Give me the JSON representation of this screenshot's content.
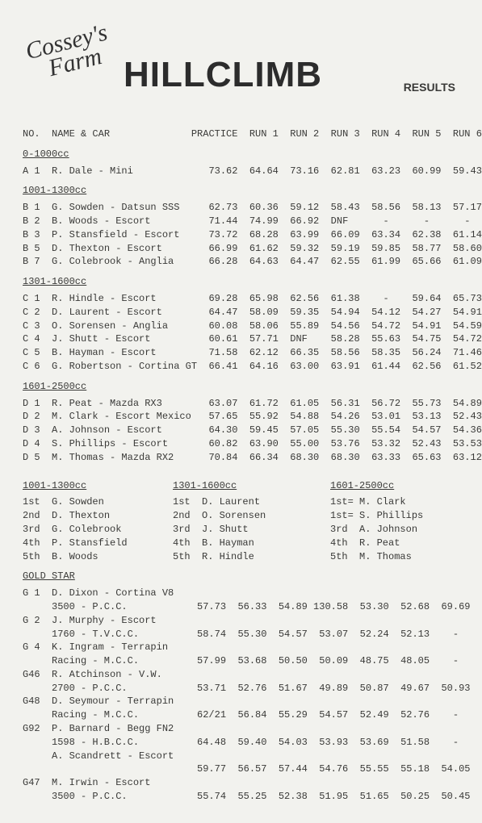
{
  "header": {
    "cursive_line1": "Cossey's",
    "cursive_line2": "Farm",
    "title": "HILLCLIMB",
    "results": "RESULTS"
  },
  "columns": "NO.  NAME & CAR              PRACTICE  RUN 1  RUN 2  RUN 3  RUN 4  RUN 5  RUN 6",
  "classes": [
    {
      "label": "0-1000cc",
      "rows": [
        "A 1  R. Dale - Mini             73.62  64.64  73.16  62.81  63.23  60.99  59.43"
      ]
    },
    {
      "label": "1001-1300cc",
      "rows": [
        "B 1  G. Sowden - Datsun SSS     62.73  60.36  59.12  58.43  58.56  58.13  57.17",
        "B 2  B. Woods - Escort          71.44  74.99  66.92  DNF      -      -      -",
        "B 3  P. Stansfield - Escort     73.72  68.28  63.99  66.09  63.34  62.38  61.14",
        "B 5  D. Thexton - Escort        66.99  61.62  59.32  59.19  59.85  58.77  58.60",
        "B 7  G. Colebrook - Anglia      66.28  64.63  64.47  62.55  61.99  65.66  61.09"
      ]
    },
    {
      "label": "1301-1600cc",
      "rows": [
        "C 1  R. Hindle - Escort         69.28  65.98  62.56  61.38    -    59.64  65.73",
        "C 2  D. Laurent - Escort        64.47  58.09  59.35  54.94  54.12  54.27  54.91",
        "C 3  O. Sorensen - Anglia       60.08  58.06  55.89  54.56  54.72  54.91  54.59",
        "C 4  J. Shutt - Escort          60.61  57.71  DNF    58.28  55.63  54.75  54.72",
        "C 5  B. Hayman - Escort         71.58  62.12  66.35  58.56  58.35  56.24  71.46",
        "C 6  G. Robertson - Cortina GT  66.41  64.16  63.00  63.91  61.44  62.56  61.52"
      ]
    },
    {
      "label": "1601-2500cc",
      "rows": [
        "D 1  R. Peat - Mazda RX3        63.07  61.72  61.05  56.31  56.72  55.73  54.89",
        "D 2  M. Clark - Escort Mexico   57.65  55.92  54.88  54.26  53.01  53.13  52.43",
        "D 3  A. Johnson - Escort        64.30  59.45  57.05  55.30  55.54  54.57  54.36",
        "D 4  S. Phillips - Escort       60.82  63.90  55.00  53.76  53.32  52.43  53.53",
        "D 5  M. Thomas - Mazda RX2      70.84  66.34  68.30  68.30  63.33  65.63  63.12"
      ]
    }
  ],
  "rankings": [
    {
      "label": "1001-1300cc",
      "rows": [
        "1st  G. Sowden",
        "2nd  D. Thexton",
        "3rd  G. Colebrook",
        "4th  P. Stansfield",
        "5th  B. Woods"
      ]
    },
    {
      "label": "1301-1600cc",
      "rows": [
        "1st  D. Laurent",
        "2nd  O. Sorensen",
        "3rd  J. Shutt",
        "4th  B. Hayman",
        "5th  R. Hindle"
      ]
    },
    {
      "label": "1601-2500cc",
      "rows": [
        "1st= M. Clark",
        "1st= S. Phillips",
        "3rd  A. Johnson",
        "4th  R. Peat",
        "5th  M. Thomas"
      ]
    }
  ],
  "gold": {
    "label": "GOLD STAR",
    "entries": [
      {
        "l1": "G 1  D. Dixon - Cortina V8",
        "l2": "3500 - P.C.C.            57.73  56.33  54.89 130.58  53.30  52.68  69.69"
      },
      {
        "l1": "G 2  J. Murphy - Escort",
        "l2": "1760 - T.V.C.C.          58.74  55.30  54.57  53.07  52.24  52.13    -"
      },
      {
        "l1": "G 4  K. Ingram - Terrapin",
        "l2": "Racing - M.C.C.          57.99  53.68  50.50  50.09  48.75  48.05    -"
      },
      {
        "l1": "G46  R. Atchinson - V.W.",
        "l2": "2700 - P.C.C.            53.71  52.76  51.67  49.89  50.87  49.67  50.93"
      },
      {
        "l1": "G48  D. Seymour - Terrapin",
        "l2": "Racing - M.C.C.          62/21  56.84  55.29  54.57  52.49  52.76    -"
      },
      {
        "l1": "G92  P. Barnard - Begg FN2",
        "l2": "1598 - H.B.C.C.          64.48  59.40  54.03  53.93  53.69  51.58    -"
      },
      {
        "l1": "     A. Scandrett - Escort",
        "l2": "                         59.77  56.57  57.44  54.76  55.55  55.18  54.05"
      },
      {
        "l1": "G47  M. Irwin - Escort",
        "l2": "3500 - P.C.C.            55.74  55.25  52.38  51.95  51.65  50.25  50.45"
      }
    ]
  }
}
